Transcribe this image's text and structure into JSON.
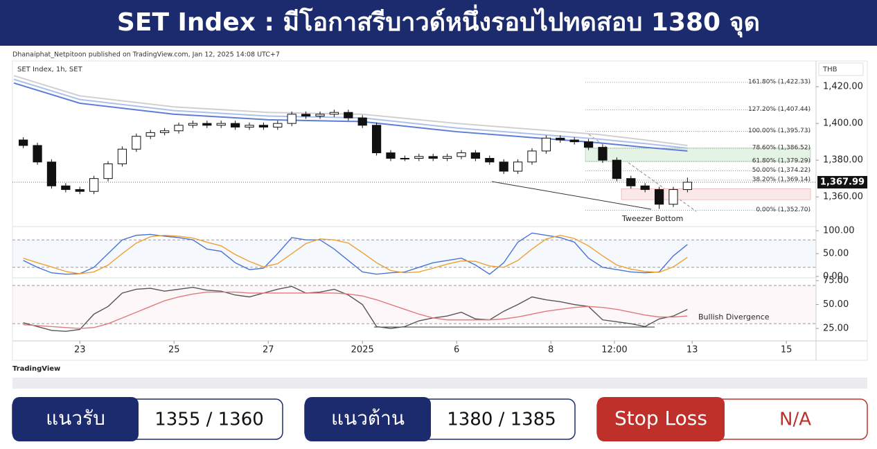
{
  "header": {
    "title": "SET Index : มีโอกาสรีบาวด์หนึ่งรอบไปทดสอบ 1380 จุด"
  },
  "publisher": "Dhanaiphat_Netpitoon published on TradingView.com, Jan 12, 2025 14:08 UTC+7",
  "chart_data": {
    "type": "candlestick",
    "symbol": "SET Index, 1h, SET",
    "currency": "THB",
    "up_color": "#ffffff",
    "down_color": "#111111",
    "x": [
      -1.2,
      -0.9,
      -0.6,
      -0.3,
      0,
      0.3,
      0.6,
      0.9,
      1.2,
      1.5,
      1.8,
      2.1,
      2.4,
      2.7,
      3,
      3.3,
      3.6,
      3.9,
      4.2,
      4.5,
      4.8,
      5.1,
      5.4,
      5.7,
      6,
      6.3,
      6.6,
      6.9,
      7.2,
      7.5,
      7.8,
      8.1,
      8.4,
      8.7,
      9,
      9.3,
      9.6,
      9.9,
      10.2,
      10.5,
      10.8,
      11.1,
      11.4,
      11.7,
      12,
      12.3,
      12.6,
      12.9
    ],
    "open": [
      1391,
      1388,
      1379,
      1366,
      1364,
      1363,
      1370,
      1378,
      1386,
      1393,
      1395,
      1396,
      1399,
      1400,
      1399,
      1400,
      1398,
      1399,
      1398,
      1400,
      1405,
      1404,
      1405,
      1406,
      1403,
      1399,
      1384,
      1381,
      1381,
      1382,
      1381,
      1382,
      1384,
      1381,
      1379,
      1374,
      1379,
      1385,
      1392,
      1391,
      1390,
      1387,
      1380,
      1370,
      1366,
      1364,
      1356,
      1364
    ],
    "high": [
      1392.5,
      1389.5,
      1380.5,
      1367.5,
      1365.5,
      1371.5,
      1379.5,
      1387.5,
      1394.5,
      1396.5,
      1397.5,
      1400.5,
      1401.5,
      1401.5,
      1401.5,
      1401.5,
      1400.5,
      1400.5,
      1401.5,
      1406.5,
      1406.5,
      1406.5,
      1407.5,
      1407.5,
      1404.5,
      1400.5,
      1385.5,
      1382.5,
      1383.5,
      1383.5,
      1383.5,
      1385.5,
      1385.5,
      1382.5,
      1380.5,
      1380.5,
      1386.5,
      1393.5,
      1393.5,
      1392.5,
      1391.5,
      1388.5,
      1381.5,
      1371.5,
      1367.5,
      1365.5,
      1365.5,
      1370.5
    ],
    "low": [
      1386.5,
      1377.5,
      1364.5,
      1362.5,
      1361.5,
      1361.5,
      1368.5,
      1376.5,
      1384.5,
      1391.5,
      1393.5,
      1394.5,
      1397.5,
      1397.5,
      1397.5,
      1396.5,
      1396.5,
      1396.5,
      1396.5,
      1398.5,
      1402.5,
      1402.5,
      1403.5,
      1401.5,
      1397.5,
      1382.5,
      1379.5,
      1379.5,
      1379.5,
      1379.5,
      1379.5,
      1380.5,
      1379.5,
      1377.5,
      1372.5,
      1372.5,
      1377.5,
      1383.5,
      1389.5,
      1388.5,
      1385.5,
      1378.5,
      1368.5,
      1364.5,
      1362.5,
      1353.5,
      1354.5,
      1362.5
    ],
    "close": [
      1388,
      1379,
      1366,
      1364,
      1363,
      1370,
      1378,
      1386,
      1393,
      1395,
      1396,
      1399,
      1400,
      1399,
      1400,
      1398,
      1399,
      1398,
      1400,
      1405,
      1404,
      1405,
      1406,
      1403,
      1399,
      1384,
      1381,
      1381,
      1382,
      1381,
      1382,
      1384,
      1381,
      1379,
      1374,
      1379,
      1385,
      1392,
      1391,
      1390,
      1387,
      1380,
      1370,
      1366,
      1364,
      1356,
      1364,
      1368
    ],
    "xlim": [
      -1.43,
      15.63
    ],
    "xticks": [
      {
        "value": 0,
        "label": "23"
      },
      {
        "value": 2,
        "label": "25"
      },
      {
        "value": 4,
        "label": "27"
      },
      {
        "value": 6,
        "label": "2025"
      },
      {
        "value": 8,
        "label": "6"
      },
      {
        "value": 10,
        "label": "8"
      },
      {
        "value": 11.35,
        "label": "12:00"
      },
      {
        "value": 13,
        "label": "13"
      },
      {
        "value": 15,
        "label": "15"
      }
    ],
    "ylim": [
      1344.6,
      1434
    ],
    "yticks": [
      {
        "value": 1420,
        "label": "1,420.00"
      },
      {
        "value": 1400,
        "label": "1,400.00"
      },
      {
        "value": 1380,
        "label": "1,380.00"
      },
      {
        "value": 1360,
        "label": "1,360.00"
      }
    ],
    "moving_averages": [
      {
        "color": "#d0d0d4",
        "x": [
          -1.4,
          0,
          2,
          4,
          6,
          8,
          10,
          11,
          12,
          12.9
        ],
        "values": [
          1426,
          1415,
          1409,
          1406,
          1405,
          1400,
          1396,
          1394,
          1391,
          1388
        ]
      },
      {
        "color": "#a9c1ec",
        "x": [
          -1.4,
          0,
          2,
          4,
          6,
          8,
          10,
          11,
          12,
          12.9
        ],
        "values": [
          1424,
          1413,
          1407,
          1404,
          1403,
          1397.5,
          1393.5,
          1391.5,
          1389,
          1386.5
        ]
      },
      {
        "color": "#5b7fd6",
        "x": [
          -1.4,
          0,
          2,
          4,
          6,
          8,
          10,
          11,
          12,
          12.9
        ],
        "values": [
          1422,
          1411,
          1405,
          1402,
          1401,
          1395.5,
          1391.5,
          1389.5,
          1387,
          1385
        ]
      }
    ],
    "fib_levels": [
      {
        "value": 1422.33,
        "label": "161.80% (1,422.33)"
      },
      {
        "value": 1407.44,
        "label": "127.20% (1,407.44)"
      },
      {
        "value": 1395.73,
        "label": "100.00% (1,395.73)"
      },
      {
        "value": 1386.52,
        "label": "78.60% (1,386.52)"
      },
      {
        "value": 1379.29,
        "label": "61.80% (1,379.29)"
      },
      {
        "value": 1374.22,
        "label": "50.00% (1,374.22)"
      },
      {
        "value": 1369.14,
        "label": "38.20% (1,369.14)"
      },
      {
        "value": 1352.7,
        "label": "0.00% (1,352.70)"
      }
    ],
    "zones": [
      {
        "range": [
          1379.29,
          1386.52
        ],
        "color": "#e4f3e4"
      },
      {
        "range": [
          1358.5,
          1364.5
        ],
        "color": "#fbe9e9"
      }
    ],
    "last_price": {
      "value": 1367.99,
      "label": "1,367.99"
    },
    "annotations": [
      "Tweezer Bottom",
      "Bullish Divergence"
    ],
    "stochastic": {
      "ylim": [
        -1.5,
        107.6
      ],
      "yticks": [
        {
          "value": 100,
          "label": "100.00"
        },
        {
          "value": 50,
          "label": "50.00"
        },
        {
          "value": 0,
          "label": "0.00"
        }
      ],
      "bands": [
        80,
        20
      ],
      "series": [
        {
          "color": "#4a73d8",
          "values": [
            35,
            20,
            8,
            5,
            6,
            20,
            50,
            80,
            90,
            92,
            88,
            85,
            80,
            60,
            55,
            30,
            15,
            18,
            50,
            85,
            80,
            80,
            60,
            35,
            10,
            5,
            8,
            10,
            20,
            30,
            35,
            40,
            25,
            5,
            30,
            75,
            95,
            90,
            85,
            75,
            40,
            20,
            15,
            10,
            8,
            10,
            45,
            70
          ]
        },
        {
          "color": "#f0a030",
          "values": [
            40,
            30,
            21,
            11,
            6,
            10,
            25,
            50,
            73,
            87,
            90,
            88,
            84,
            75,
            67,
            48,
            33,
            21,
            28,
            50,
            72,
            82,
            80,
            73,
            52,
            30,
            13,
            8,
            10,
            18,
            27,
            34,
            33,
            23,
            20,
            35,
            60,
            82,
            90,
            83,
            67,
            45,
            25,
            16,
            11,
            9,
            21,
            42
          ]
        }
      ]
    },
    "rsi": {
      "ylim": [
        14.9,
        77.2
      ],
      "yticks": [
        {
          "value": 75,
          "label": "75.00"
        },
        {
          "value": 50,
          "label": "50.00"
        },
        {
          "value": 25,
          "label": "25.00"
        }
      ],
      "bands": [
        70,
        30
      ],
      "series": [
        {
          "color": "#555555",
          "values": [
            31,
            27,
            23,
            22,
            24,
            40,
            48,
            62,
            66,
            67,
            64,
            66,
            68,
            65,
            64,
            60,
            58,
            62,
            66,
            69,
            62,
            63,
            66,
            60,
            50,
            27,
            25,
            27,
            33,
            36,
            38,
            42,
            35,
            34,
            43,
            50,
            58,
            55,
            53,
            50,
            48,
            34,
            32,
            30,
            27,
            35,
            38,
            45
          ]
        },
        {
          "color": "#e07a7a",
          "values": [
            29,
            28,
            27,
            26,
            25,
            26,
            30,
            36,
            42,
            48,
            54,
            58,
            61,
            63,
            63,
            63,
            62,
            62,
            62,
            62,
            62,
            62,
            62,
            61,
            59,
            55,
            50,
            45,
            40,
            36,
            34,
            34,
            34,
            34,
            35,
            37,
            40,
            43,
            45,
            47,
            48,
            47,
            45,
            42,
            39,
            37,
            37,
            38
          ]
        }
      ]
    }
  },
  "logo": "TradingView",
  "levels": [
    {
      "label": "แนวรับ",
      "value": "1355 / 1360"
    },
    {
      "label": "แนวต้าน",
      "value": "1380 / 1385"
    },
    {
      "label": "Stop Loss",
      "value": "N/A"
    }
  ]
}
